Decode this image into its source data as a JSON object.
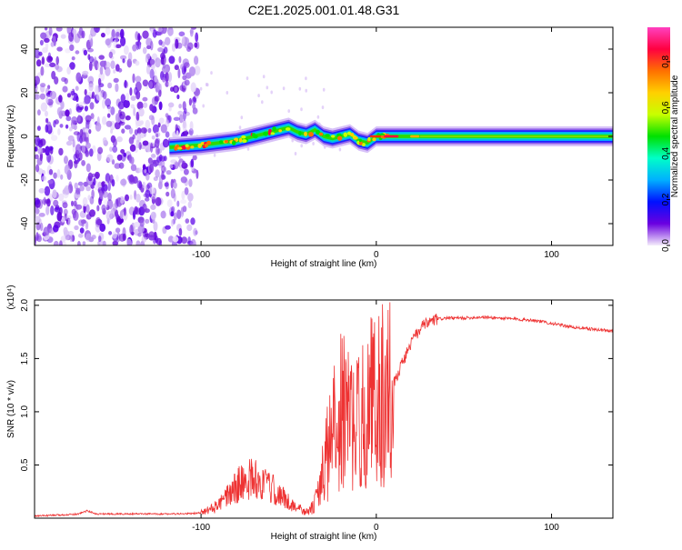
{
  "title": "C2E1.2025.001.01.48.G31",
  "chart_data": [
    {
      "type": "heatmap",
      "xlabel": "Height of straight line (km)",
      "ylabel": "Frequency (Hz)",
      "xlim": [
        -195,
        135
      ],
      "ylim": [
        -50,
        50
      ],
      "x_ticks": [
        -100,
        0,
        100
      ],
      "x_tick_labels": [
        "-100",
        "0",
        "100"
      ],
      "y_ticks": [
        40,
        20,
        0,
        -20,
        -40
      ],
      "y_tick_labels": [
        "40",
        "20",
        "0",
        "-20",
        "-40"
      ],
      "grid": false,
      "noise_region_x": [
        -195,
        -102
      ],
      "ridge": {
        "x": [
          -118,
          -100,
          -80,
          -70,
          -60,
          -50,
          -45,
          -40,
          -35,
          -30,
          -25,
          -20,
          -15,
          -10,
          -5,
          0,
          10,
          20,
          40,
          60,
          80,
          100,
          135
        ],
        "y": [
          -5,
          -4,
          -2,
          0,
          2,
          4,
          2,
          1,
          3,
          0,
          -1,
          0,
          1,
          -2,
          -3,
          0,
          0,
          0,
          0,
          0,
          0,
          0,
          0
        ]
      },
      "colorbar": {
        "label": "Normalized spectral amplitude",
        "range": [
          0.0,
          0.95
        ],
        "ticks": [
          0.0,
          0.2,
          0.4,
          0.6,
          0.8
        ],
        "tick_labels": [
          "0.0",
          "0.2",
          "0.4",
          "0.6",
          "0.8"
        ],
        "colors": [
          "#f4ecfb",
          "#6a00e0",
          "#0010ff",
          "#00b0ff",
          "#00ffc8",
          "#00e000",
          "#c8ff00",
          "#ffd000",
          "#ff7000",
          "#ff0040",
          "#ff40c0"
        ]
      }
    },
    {
      "type": "line",
      "xlabel": "Height of straight line (km)",
      "ylabel": "SNR (10 * v/v)",
      "y_multiplier_label": "(x10⁴)",
      "xlim": [
        -195,
        135
      ],
      "ylim": [
        0,
        2.05
      ],
      "x_ticks": [
        -100,
        0,
        100
      ],
      "x_tick_labels": [
        "-100",
        "0",
        "100"
      ],
      "y_ticks": [
        0.5,
        1.0,
        1.5,
        2.0
      ],
      "y_tick_labels": [
        "0.5",
        "1.0",
        "1.5",
        "2.0"
      ],
      "grid": false,
      "series": [
        {
          "color": "#ee3333",
          "x": [
            -195,
            -180,
            -170,
            -165,
            -160,
            -150,
            -140,
            -130,
            -120,
            -110,
            -100,
            -95,
            -90,
            -85,
            -80,
            -75,
            -70,
            -65,
            -60,
            -55,
            -50,
            -45,
            -40,
            -36,
            -32,
            -28,
            -24,
            -20,
            -16,
            -12,
            -8,
            -4,
            0,
            4,
            8,
            12,
            16,
            20,
            25,
            30,
            35,
            40,
            50,
            60,
            70,
            80,
            90,
            100,
            110,
            120,
            135
          ],
          "y": [
            0.02,
            0.03,
            0.04,
            0.07,
            0.04,
            0.04,
            0.04,
            0.04,
            0.04,
            0.04,
            0.05,
            0.08,
            0.12,
            0.2,
            0.3,
            0.35,
            0.38,
            0.32,
            0.28,
            0.22,
            0.15,
            0.1,
            0.05,
            0.1,
            0.3,
            0.6,
            0.85,
            1.0,
            0.95,
            0.85,
            0.95,
            1.1,
            1.15,
            1.15,
            1.2,
            1.35,
            1.5,
            1.65,
            1.78,
            1.84,
            1.87,
            1.88,
            1.88,
            1.89,
            1.88,
            1.87,
            1.86,
            1.83,
            1.8,
            1.78,
            1.76
          ]
        }
      ]
    }
  ]
}
